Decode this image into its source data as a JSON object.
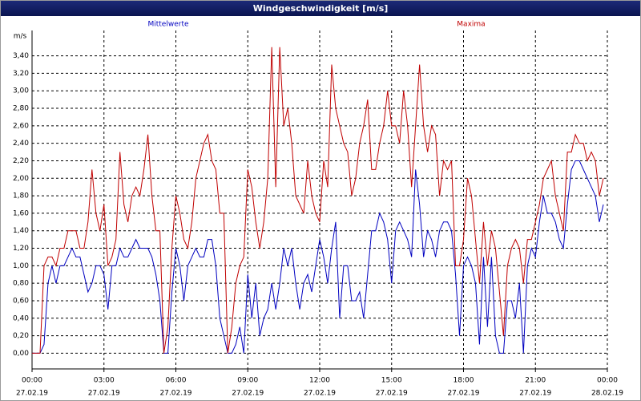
{
  "chart_data": {
    "type": "line",
    "title": "Windgeschwindigkeit [m/s]",
    "y_label": "m/s",
    "x": [
      0,
      10,
      20,
      30,
      40,
      50,
      60,
      70,
      80,
      90,
      100,
      110,
      120,
      130,
      140,
      150,
      160,
      170,
      180,
      190,
      200,
      210,
      220,
      230,
      240,
      250,
      260,
      270,
      280,
      290,
      300,
      310,
      320,
      330,
      340,
      350,
      360,
      370,
      380,
      390,
      400,
      410,
      420,
      430,
      440,
      450,
      460,
      470,
      480,
      490,
      500,
      510,
      520,
      530,
      540,
      550,
      560,
      570,
      580,
      590,
      600,
      610,
      620,
      630,
      640,
      650,
      660,
      670,
      680,
      690,
      700,
      710,
      720,
      730,
      740,
      750,
      760,
      770,
      780,
      790,
      800,
      810,
      820,
      830,
      840,
      850,
      860,
      870,
      880,
      890,
      900,
      910,
      920,
      930,
      940,
      950,
      960,
      970,
      980,
      990,
      1000,
      1010,
      1020,
      1030,
      1040,
      1050,
      1060,
      1070,
      1080,
      1090,
      1100,
      1110,
      1120,
      1130,
      1140,
      1150,
      1160,
      1170,
      1180,
      1190,
      1200,
      1210,
      1220,
      1230,
      1240,
      1250,
      1260,
      1270,
      1280,
      1290,
      1300,
      1310,
      1320,
      1330,
      1340,
      1350,
      1360,
      1370,
      1380,
      1390,
      1400,
      1410,
      1420,
      1430
    ],
    "series": [
      {
        "name": "Mittelwerte",
        "color": "#0000c0",
        "values": [
          0,
          0,
          0,
          0.1,
          0.8,
          1.0,
          0.8,
          1.0,
          1.0,
          1.1,
          1.2,
          1.1,
          1.1,
          0.9,
          0.7,
          0.8,
          1.0,
          1.0,
          0.9,
          0.5,
          1.0,
          1.0,
          1.2,
          1.1,
          1.1,
          1.2,
          1.3,
          1.2,
          1.2,
          1.2,
          1.1,
          0.9,
          0.6,
          0,
          0,
          0.7,
          1.2,
          1.0,
          0.6,
          1.0,
          1.1,
          1.2,
          1.1,
          1.1,
          1.3,
          1.3,
          1.0,
          0.4,
          0.2,
          0,
          0,
          0.1,
          0.3,
          0,
          0.9,
          0.4,
          0.8,
          0.2,
          0.4,
          0.5,
          0.8,
          0.5,
          0.8,
          1.2,
          1.0,
          1.2,
          0.8,
          0.5,
          0.8,
          0.9,
          0.7,
          1.0,
          1.3,
          1.1,
          0.8,
          1.2,
          1.5,
          0.4,
          1.0,
          1.0,
          0.6,
          0.6,
          0.7,
          0.4,
          0.9,
          1.4,
          1.4,
          1.6,
          1.5,
          1.3,
          0.8,
          1.4,
          1.5,
          1.4,
          1.3,
          1.1,
          2.1,
          1.7,
          1.1,
          1.4,
          1.3,
          1.1,
          1.4,
          1.5,
          1.5,
          1.4,
          0.9,
          0.2,
          1.0,
          1.1,
          1.0,
          0.8,
          0.1,
          1.1,
          0.3,
          1.1,
          0.2,
          0,
          0,
          0.6,
          0.6,
          0.4,
          0.8,
          0,
          1.0,
          1.2,
          1.1,
          1.5,
          1.8,
          1.6,
          1.6,
          1.5,
          1.3,
          1.2,
          1.7,
          2.1,
          2.2,
          2.2,
          2.1,
          2.0,
          1.9,
          1.8,
          1.5,
          1.7
        ]
      },
      {
        "name": "Maxima",
        "color": "#c00000",
        "values": [
          0,
          0,
          0,
          1.0,
          1.1,
          1.1,
          1.0,
          1.2,
          1.2,
          1.4,
          1.4,
          1.4,
          1.2,
          1.2,
          1.5,
          2.1,
          1.6,
          1.4,
          1.7,
          1.0,
          1.1,
          1.3,
          2.3,
          1.7,
          1.5,
          1.8,
          1.9,
          1.8,
          2.1,
          2.5,
          1.8,
          1.4,
          1.4,
          0,
          0.3,
          1.2,
          1.8,
          1.6,
          1.3,
          1.2,
          1.5,
          2.0,
          2.2,
          2.4,
          2.5,
          2.2,
          2.1,
          1.6,
          1.6,
          0,
          0.3,
          0.8,
          1.0,
          1.1,
          2.1,
          1.9,
          1.5,
          1.2,
          1.5,
          2.0,
          3.5,
          1.9,
          3.5,
          2.6,
          2.8,
          2.4,
          1.8,
          1.7,
          1.6,
          2.2,
          1.8,
          1.6,
          1.5,
          2.2,
          1.9,
          3.3,
          2.8,
          2.6,
          2.4,
          2.3,
          1.8,
          2.0,
          2.4,
          2.6,
          2.9,
          2.1,
          2.1,
          2.4,
          2.6,
          3.0,
          2.6,
          2.6,
          2.4,
          3.0,
          2.6,
          1.9,
          2.6,
          3.3,
          2.6,
          2.3,
          2.6,
          2.5,
          1.8,
          2.2,
          2.1,
          2.2,
          1.0,
          1.0,
          1.3,
          2.0,
          1.8,
          1.3,
          0.8,
          1.5,
          1.0,
          1.4,
          1.2,
          0.7,
          0.2,
          1.0,
          1.2,
          1.3,
          1.2,
          0.8,
          1.3,
          1.3,
          1.5,
          1.7,
          2.0,
          2.1,
          2.2,
          1.8,
          1.6,
          1.4,
          2.3,
          2.3,
          2.5,
          2.4,
          2.4,
          2.2,
          2.3,
          2.2,
          1.8,
          2.0
        ]
      }
    ],
    "xlim": [
      0,
      1440
    ],
    "xticks": [
      {
        "value": 0,
        "label": "00:00"
      },
      {
        "value": 180,
        "label": "03:00"
      },
      {
        "value": 360,
        "label": "06:00"
      },
      {
        "value": 540,
        "label": "09:00"
      },
      {
        "value": 720,
        "label": "12:00"
      },
      {
        "value": 900,
        "label": "15:00"
      },
      {
        "value": 1080,
        "label": "18:00"
      },
      {
        "value": 1260,
        "label": "21:00"
      },
      {
        "value": 1440,
        "label": "00:00"
      }
    ],
    "xtick_dates": [
      "27.02.19",
      "27.02.19",
      "27.02.19",
      "27.02.19",
      "27.02.19",
      "27.02.19",
      "27.02.19",
      "27.02.19",
      "28.02.19"
    ],
    "ylim": [
      -0.18,
      3.69
    ],
    "yticks": [
      {
        "value": 0,
        "label": "0,00"
      },
      {
        "value": 0.2,
        "label": "0,20"
      },
      {
        "value": 0.4,
        "label": "0,40"
      },
      {
        "value": 0.6,
        "label": "0,60"
      },
      {
        "value": 0.8,
        "label": "0,80"
      },
      {
        "value": 1.0,
        "label": "1,00"
      },
      {
        "value": 1.2,
        "label": "1,20"
      },
      {
        "value": 1.4,
        "label": "1,40"
      },
      {
        "value": 1.6,
        "label": "1,60"
      },
      {
        "value": 1.8,
        "label": "1,80"
      },
      {
        "value": 2.0,
        "label": "2,00"
      },
      {
        "value": 2.2,
        "label": "2,20"
      },
      {
        "value": 2.4,
        "label": "2,40"
      },
      {
        "value": 2.6,
        "label": "2,60"
      },
      {
        "value": 2.8,
        "label": "2,80"
      },
      {
        "value": 3.0,
        "label": "3,00"
      },
      {
        "value": 3.2,
        "label": "3,20"
      },
      {
        "value": 3.4,
        "label": "3,40"
      }
    ],
    "grid": true
  }
}
